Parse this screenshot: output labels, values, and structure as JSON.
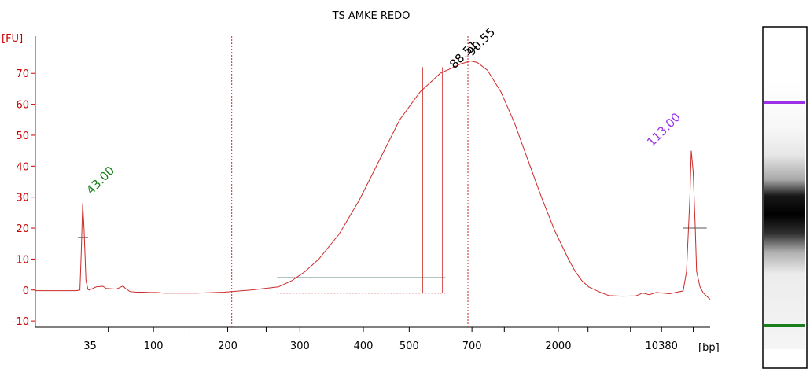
{
  "chart_data": {
    "type": "line",
    "title": "TS AMKE REDO",
    "ylabel": "[FU]",
    "xlabel": "[bp]",
    "ylim": [
      -12,
      82
    ],
    "yticks": [
      -10,
      0,
      10,
      20,
      30,
      40,
      50,
      60,
      70
    ],
    "x_ticks": [
      "35",
      "100",
      "200",
      "300",
      "400",
      "500",
      "700",
      "2000",
      "10380"
    ],
    "grid": false,
    "peak_labels": [
      {
        "text": "43.00",
        "color": "#1a7f1a"
      },
      {
        "text": "88.51",
        "color": "#000000"
      },
      {
        "text": "90.55",
        "color": "#000000"
      },
      {
        "text": "113.00",
        "color": "#9b30e6"
      }
    ],
    "colors": {
      "axis": "#cc0000",
      "trace": "#cc2a2a",
      "lower_marker": "#1a7f1a",
      "upper_marker": "#9b30e6",
      "region_bar": "#7f9f9f"
    },
    "trace": {
      "x_axis_units": "migration position (0-1000 scale)",
      "x": [
        0,
        30,
        60,
        66,
        68,
        70,
        72,
        75,
        78,
        80,
        90,
        100,
        105,
        120,
        130,
        133,
        140,
        150,
        160,
        170,
        180,
        185,
        190,
        200,
        240,
        280,
        320,
        360,
        380,
        400,
        420,
        450,
        480,
        510,
        540,
        570,
        600,
        620,
        630,
        645,
        655,
        670,
        690,
        710,
        730,
        750,
        770,
        790,
        800,
        810,
        820,
        830,
        840,
        850,
        870,
        890,
        900,
        910,
        920,
        940,
        960,
        965,
        970,
        972,
        975,
        978,
        980,
        985,
        990,
        1000
      ],
      "y": [
        -0.2,
        -0.2,
        -0.2,
        0,
        12,
        28,
        20,
        3,
        0.2,
        0,
        1,
        1.2,
        0.5,
        0.3,
        1.3,
        0.6,
        -0.5,
        -0.7,
        -0.7,
        -0.8,
        -0.8,
        -0.9,
        -1,
        -1,
        -1,
        -0.7,
        0,
        1,
        3,
        6,
        10,
        18,
        29,
        42,
        55,
        64,
        70,
        72,
        73,
        74,
        73.5,
        71,
        64,
        54,
        42,
        30,
        19,
        10,
        6,
        3,
        1,
        0,
        -1,
        -1.8,
        -2,
        -1.9,
        -1,
        -1.5,
        -0.8,
        -1.2,
        -0.3,
        6,
        30,
        45,
        38,
        20,
        6,
        1,
        -1,
        -3
      ]
    },
    "region": {
      "x_start": 380,
      "x_end": 642,
      "baseline": 4
    },
    "vlines": [
      291,
      641
    ],
    "smear_markers": [
      604,
      633
    ]
  },
  "gel": {
    "top_band_color": "#9b30e6",
    "bottom_band_color": "#1a7f1a"
  }
}
